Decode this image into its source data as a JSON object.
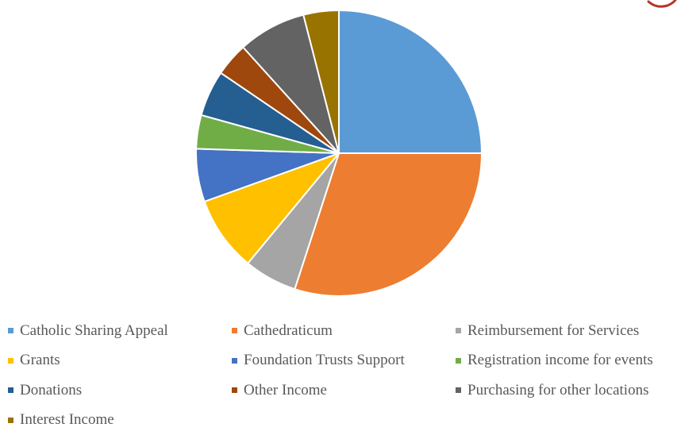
{
  "chart_data": {
    "type": "pie",
    "start_angle_deg": 0,
    "direction": "clockwise",
    "legend_position": "bottom",
    "slices": [
      {
        "label": "Catholic Sharing Appeal",
        "value": 25.0,
        "color": "#5b9bd5"
      },
      {
        "label": "Cathedraticum",
        "value": 30.0,
        "color": "#ed7d31"
      },
      {
        "label": "Reimbursement for Services",
        "value": 6.0,
        "color": "#a5a5a5"
      },
      {
        "label": "Grants",
        "value": 8.5,
        "color": "#ffc000"
      },
      {
        "label": "Foundation Trusts Support",
        "value": 6.0,
        "color": "#4472c4"
      },
      {
        "label": "Registration income for events",
        "value": 3.8,
        "color": "#70ad47"
      },
      {
        "label": "Donations",
        "value": 5.2,
        "color": "#255e91"
      },
      {
        "label": "Other Income",
        "value": 3.8,
        "color": "#9e480e"
      },
      {
        "label": "Purchasing for other locations",
        "value": 7.7,
        "color": "#636363"
      },
      {
        "label": "Interest Income",
        "value": 4.0,
        "color": "#997300"
      }
    ]
  },
  "decoration": {
    "corner_mark_color": "#b5352a"
  }
}
